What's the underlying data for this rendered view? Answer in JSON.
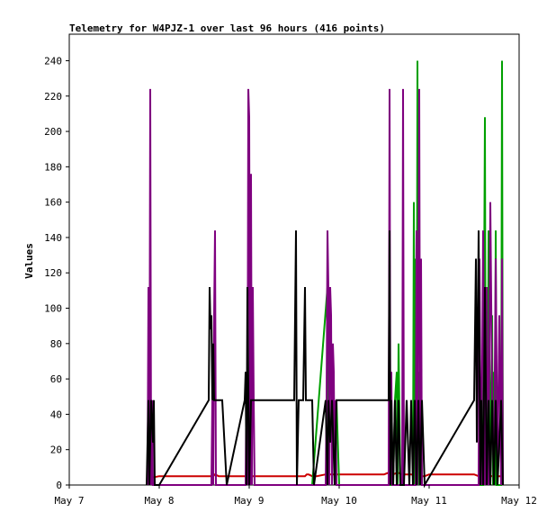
{
  "chart_data": {
    "type": "line",
    "title": "Telemetry for W4PJZ-1 over last 96 hours (416 points)",
    "ylabel": "Values",
    "xlabel": "",
    "ylim": [
      0,
      255
    ],
    "xlim": [
      "May 7",
      "May 12"
    ],
    "x_ticks": [
      "May 7",
      "May 8",
      "May 9",
      "May 10",
      "May 11",
      "May 12"
    ],
    "y_ticks": [
      0,
      20,
      40,
      60,
      80,
      100,
      120,
      140,
      160,
      180,
      200,
      220,
      240
    ],
    "grid": false,
    "legend": "none",
    "series": [
      {
        "color": "#cc0000",
        "x": [
          7.9,
          8.0,
          8.3,
          8.6,
          8.62,
          8.66,
          8.7,
          9.0,
          9.3,
          9.6,
          9.62,
          9.64,
          9.66,
          9.7,
          9.75,
          9.85,
          9.9,
          10.0,
          10.3,
          10.5,
          10.55,
          10.6,
          10.65,
          10.7,
          10.8,
          10.88,
          10.95,
          11.0,
          11.2,
          11.4,
          11.5,
          11.55,
          11.6,
          11.7,
          11.8
        ],
        "values": [
          4,
          5,
          5,
          5,
          6,
          5,
          5,
          5,
          5,
          5,
          5,
          6,
          6,
          5,
          5,
          6,
          6,
          6,
          6,
          6,
          7,
          6,
          7,
          6,
          6,
          5,
          5,
          6,
          6,
          6,
          6,
          5,
          6,
          5,
          5
        ]
      },
      {
        "color": "#00a000",
        "x": [
          9.7,
          9.87,
          9.88,
          9.9,
          9.92,
          9.93,
          9.95,
          9.97,
          10.0,
          10.6,
          10.62,
          10.64,
          10.65,
          10.66,
          10.68,
          10.82,
          10.83,
          10.84,
          10.85,
          10.86,
          10.87,
          10.88,
          10.89,
          10.9,
          10.92,
          10.93,
          11.6,
          11.62,
          11.63,
          11.64,
          11.65,
          11.66,
          11.68,
          11.7,
          11.71,
          11.72,
          11.73,
          11.74,
          11.75,
          11.8,
          11.81,
          11.82
        ],
        "values": [
          0,
          112,
          48,
          96,
          48,
          64,
          0,
          48,
          0,
          0,
          48,
          64,
          0,
          80,
          0,
          0,
          160,
          0,
          128,
          0,
          240,
          0,
          64,
          48,
          0,
          0,
          0,
          208,
          0,
          64,
          0,
          144,
          0,
          96,
          0,
          64,
          0,
          144,
          0,
          0,
          240,
          0
        ]
      },
      {
        "color": "#7f007f",
        "x": [
          7.87,
          7.88,
          7.89,
          7.9,
          7.91,
          7.92,
          7.93,
          7.94,
          8.58,
          8.59,
          8.6,
          8.61,
          8.62,
          8.63,
          8.64,
          8.96,
          8.97,
          8.98,
          8.99,
          9.0,
          9.01,
          9.02,
          9.03,
          9.04,
          9.05,
          9.06,
          9.85,
          9.86,
          9.87,
          9.88,
          9.89,
          9.9,
          9.91,
          9.92,
          9.93,
          9.94,
          9.95,
          9.96,
          9.97,
          9.98,
          10.55,
          10.56,
          10.57,
          10.58,
          10.59,
          10.7,
          10.71,
          10.72,
          10.73,
          10.85,
          10.86,
          10.87,
          10.88,
          10.89,
          10.9,
          10.91,
          10.92,
          11.55,
          11.56,
          11.57,
          11.58,
          11.6,
          11.62,
          11.64,
          11.66,
          11.68,
          11.7,
          11.72,
          11.74,
          11.76,
          11.78,
          11.8,
          11.81,
          11.82
        ],
        "values": [
          0,
          112,
          0,
          224,
          0,
          48,
          0,
          0,
          0,
          48,
          0,
          96,
          144,
          0,
          0,
          0,
          64,
          0,
          224,
          208,
          0,
          176,
          0,
          112,
          48,
          0,
          0,
          48,
          144,
          112,
          0,
          112,
          96,
          0,
          80,
          64,
          0,
          48,
          0,
          0,
          0,
          224,
          0,
          64,
          0,
          0,
          224,
          0,
          0,
          0,
          144,
          0,
          112,
          224,
          0,
          128,
          0,
          0,
          128,
          48,
          0,
          144,
          0,
          112,
          0,
          160,
          48,
          0,
          128,
          0,
          96,
          0,
          128,
          0
        ]
      },
      {
        "color": "#000000",
        "x": [
          7.86,
          7.88,
          7.89,
          7.91,
          7.93,
          7.94,
          7.95,
          7.96,
          8.0,
          8.55,
          8.56,
          8.57,
          8.58,
          8.59,
          8.6,
          8.61,
          8.65,
          8.66,
          8.7,
          8.75,
          8.95,
          8.96,
          8.97,
          8.98,
          9.0,
          9.02,
          9.03,
          9.04,
          9.06,
          9.07,
          9.5,
          9.52,
          9.53,
          9.55,
          9.6,
          9.62,
          9.63,
          9.65,
          9.7,
          9.72,
          9.85,
          9.87,
          9.88,
          9.9,
          9.92,
          9.95,
          9.97,
          10.0,
          10.55,
          10.56,
          10.57,
          10.58,
          10.6,
          10.62,
          10.64,
          10.66,
          10.68,
          10.72,
          10.75,
          10.78,
          10.8,
          10.82,
          10.84,
          10.86,
          10.88,
          10.9,
          10.92,
          10.95,
          11.5,
          11.52,
          11.53,
          11.55,
          11.57,
          11.58,
          11.6,
          11.62,
          11.64,
          11.66,
          11.68,
          11.7,
          11.72,
          11.74,
          11.76,
          11.8,
          11.82
        ],
        "values": [
          0,
          48,
          0,
          48,
          24,
          48,
          0,
          0,
          0,
          48,
          112,
          88,
          96,
          48,
          80,
          48,
          48,
          48,
          48,
          0,
          48,
          64,
          0,
          112,
          0,
          48,
          48,
          48,
          48,
          48,
          48,
          144,
          0,
          48,
          48,
          112,
          48,
          48,
          48,
          0,
          48,
          0,
          48,
          24,
          48,
          0,
          48,
          48,
          48,
          144,
          0,
          48,
          0,
          48,
          0,
          48,
          0,
          0,
          48,
          0,
          48,
          0,
          48,
          0,
          48,
          0,
          48,
          0,
          48,
          128,
          24,
          144,
          0,
          48,
          0,
          112,
          0,
          48,
          0,
          48,
          0,
          48,
          0,
          48,
          0
        ]
      }
    ]
  }
}
